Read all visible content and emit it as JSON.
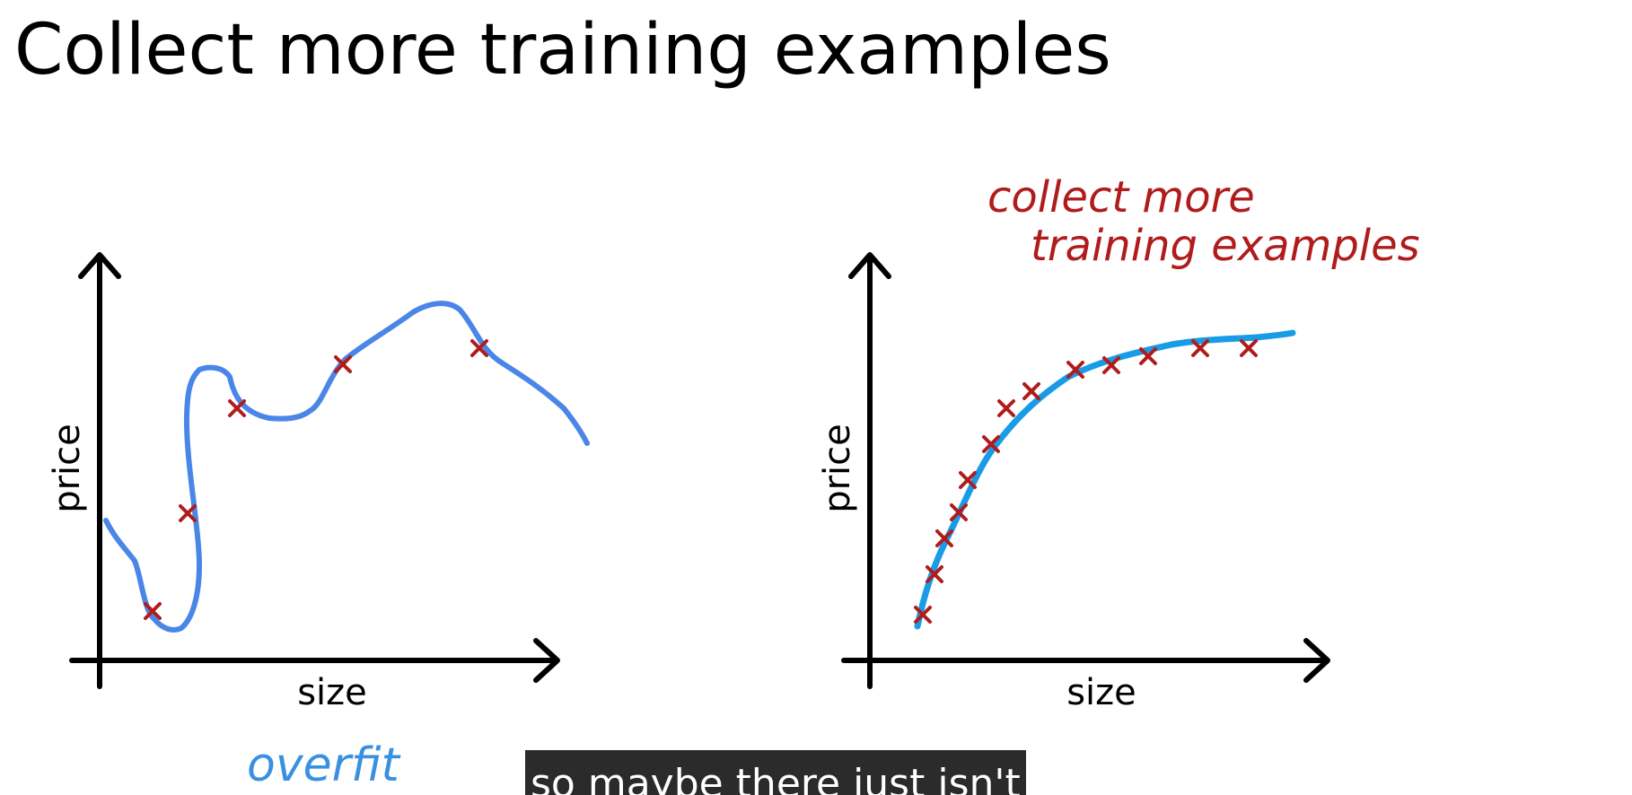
{
  "title": "Collect more training examples",
  "caption": "so maybe there just isn't",
  "colors": {
    "axis": "#000000",
    "curve_left": "#4a86e8",
    "curve_right": "#1a9be6",
    "marker": "#b01c1c",
    "annotation_red": "#b01c1c",
    "annotation_blue": "#3a90e0"
  },
  "left_plot": {
    "xlabel": "size",
    "ylabel": "price",
    "annotation": "overfit"
  },
  "right_plot": {
    "xlabel": "size",
    "ylabel": "price",
    "annotation_line1": "collect more",
    "annotation_line2": "training examples"
  }
}
